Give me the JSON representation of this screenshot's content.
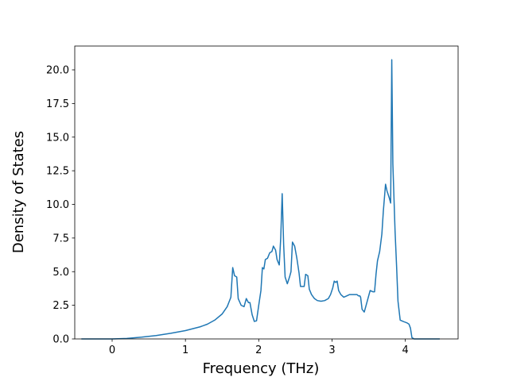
{
  "chart_data": {
    "type": "line",
    "xlabel": "Frequency (THz)",
    "ylabel": "Density of States",
    "xlim": [
      -0.51,
      4.72
    ],
    "ylim": [
      0,
      21.77
    ],
    "xticks": [
      0,
      1,
      2,
      3,
      4
    ],
    "yticks": [
      {
        "value": 0,
        "label": "0.0"
      },
      2.5,
      {
        "value": 5,
        "label": "5.0"
      },
      7.5,
      {
        "value": 10,
        "label": "10.0"
      },
      12.5,
      {
        "value": 15,
        "label": "15.0"
      },
      17.5,
      {
        "value": 20,
        "label": "20.0"
      }
    ],
    "grid": false,
    "x": [
      -0.42,
      0,
      0.2,
      0.4,
      0.6,
      0.8,
      1.0,
      1.2,
      1.3,
      1.4,
      1.5,
      1.57,
      1.62,
      1.645,
      1.67,
      1.7,
      1.72,
      1.76,
      1.8,
      1.83,
      1.86,
      1.88,
      1.91,
      1.94,
      1.97,
      2.0,
      2.03,
      2.05,
      2.07,
      2.09,
      2.12,
      2.15,
      2.18,
      2.2,
      2.23,
      2.25,
      2.28,
      2.3,
      2.32,
      2.34,
      2.36,
      2.39,
      2.42,
      2.44,
      2.46,
      2.49,
      2.52,
      2.55,
      2.57,
      2.6,
      2.62,
      2.64,
      2.67,
      2.69,
      2.72,
      2.76,
      2.8,
      2.85,
      2.9,
      2.95,
      2.98,
      3.01,
      3.03,
      3.05,
      3.07,
      3.09,
      3.12,
      3.16,
      3.2,
      3.24,
      3.3,
      3.34,
      3.36,
      3.38,
      3.39,
      3.41,
      3.44,
      3.47,
      3.52,
      3.56,
      3.58,
      3.6,
      3.62,
      3.65,
      3.68,
      3.7,
      3.73,
      3.75,
      3.78,
      3.8,
      3.815,
      3.83,
      3.86,
      3.88,
      3.9,
      3.93,
      3.97,
      4.02,
      4.05,
      4.07,
      4.09,
      4.12,
      4.47
    ],
    "series": [
      {
        "name": "Density of States",
        "color": "#1f77b4",
        "values": [
          0,
          0,
          0.04,
          0.13,
          0.25,
          0.42,
          0.62,
          0.9,
          1.1,
          1.4,
          1.85,
          2.4,
          3.1,
          5.3,
          4.7,
          4.6,
          3.0,
          2.5,
          2.4,
          3.0,
          2.7,
          2.7,
          1.8,
          1.3,
          1.35,
          2.5,
          3.6,
          5.3,
          5.2,
          5.9,
          6.0,
          6.4,
          6.5,
          6.9,
          6.6,
          5.9,
          5.5,
          7.5,
          10.8,
          7.0,
          4.6,
          4.1,
          4.6,
          5.0,
          7.2,
          6.9,
          6.0,
          4.9,
          3.9,
          3.9,
          3.9,
          4.8,
          4.7,
          3.7,
          3.3,
          3.0,
          2.85,
          2.8,
          2.85,
          3.0,
          3.3,
          3.8,
          4.3,
          4.2,
          4.3,
          3.6,
          3.3,
          3.1,
          3.2,
          3.3,
          3.3,
          3.3,
          3.2,
          3.2,
          3.1,
          2.2,
          2.0,
          2.6,
          3.6,
          3.5,
          3.5,
          4.8,
          5.8,
          6.5,
          7.8,
          9.5,
          11.5,
          11.0,
          10.5,
          10.1,
          20.75,
          13.0,
          8.0,
          5.5,
          2.8,
          1.4,
          1.3,
          1.2,
          1.1,
          0.8,
          0.1,
          0,
          0
        ]
      }
    ]
  }
}
